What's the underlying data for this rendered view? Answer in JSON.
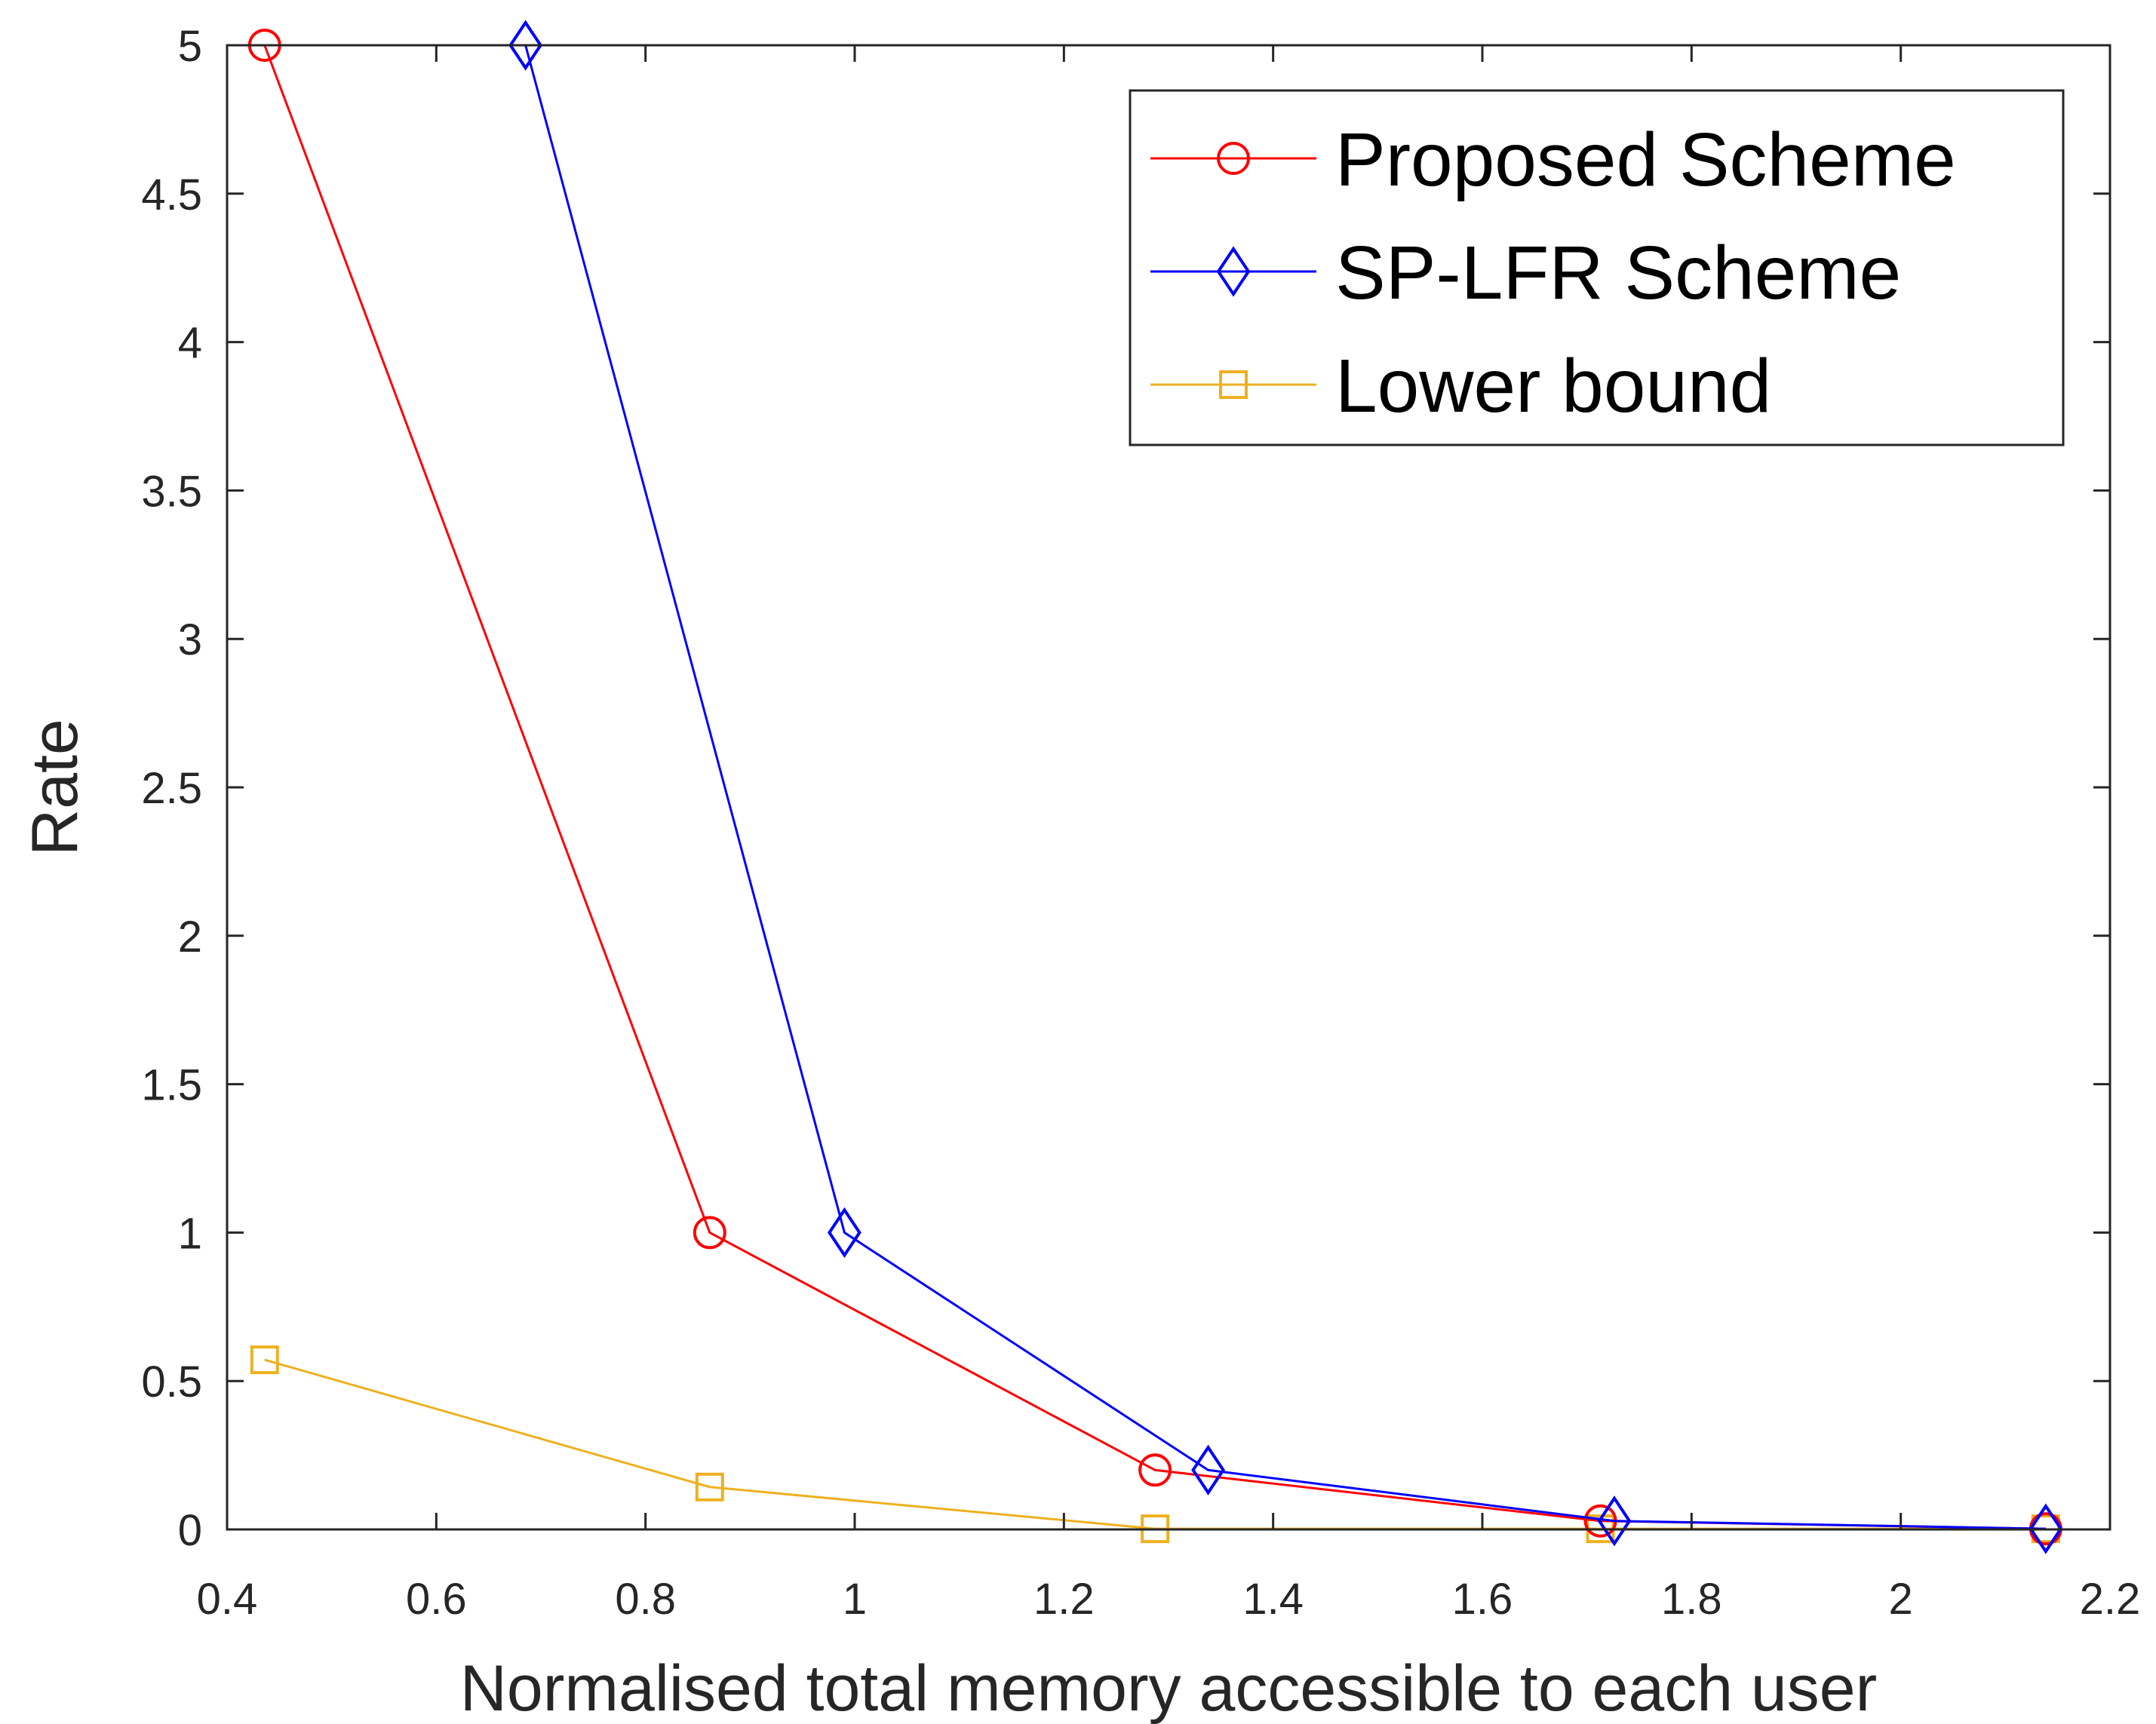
{
  "chart_data": {
    "type": "line",
    "xlabel": "Normalised total memory accessible to each user",
    "ylabel": "Rate",
    "xlim": [
      0.4,
      2.2
    ],
    "ylim": [
      0,
      5
    ],
    "xticks": [
      "0.4",
      "0.6",
      "0.8",
      "1",
      "1.2",
      "1.4",
      "1.6",
      "1.8",
      "2",
      "2.2"
    ],
    "yticks": [
      "0",
      "0.5",
      "1",
      "1.5",
      "2",
      "2.5",
      "3",
      "3.5",
      "4",
      "4.5",
      "5"
    ],
    "grid": false,
    "legend_position": "top-right",
    "series": [
      {
        "name": "Proposed Scheme",
        "color": "#ff0000",
        "marker": "circle",
        "x": [
          0.4359,
          0.8614,
          1.2871,
          1.7129,
          2.1386
        ],
        "y": [
          5,
          1,
          0.2,
          0.0286,
          0.0022
        ]
      },
      {
        "name": "SP-LFR Scheme",
        "color": "#0000ff",
        "marker": "diamond",
        "x": [
          0.6853,
          0.9902,
          1.3379,
          1.7262,
          2.1386
        ],
        "y": [
          5,
          1,
          0.2,
          0.0286,
          0.0022
        ]
      },
      {
        "name": "Lower bound",
        "color": "#edb120",
        "marker": "square",
        "x": [
          0.4359,
          0.8614,
          1.2871,
          1.7129,
          2.1386
        ],
        "y": [
          0.5714,
          0.1429,
          0.0022,
          0.0022,
          0.0022
        ]
      }
    ]
  }
}
